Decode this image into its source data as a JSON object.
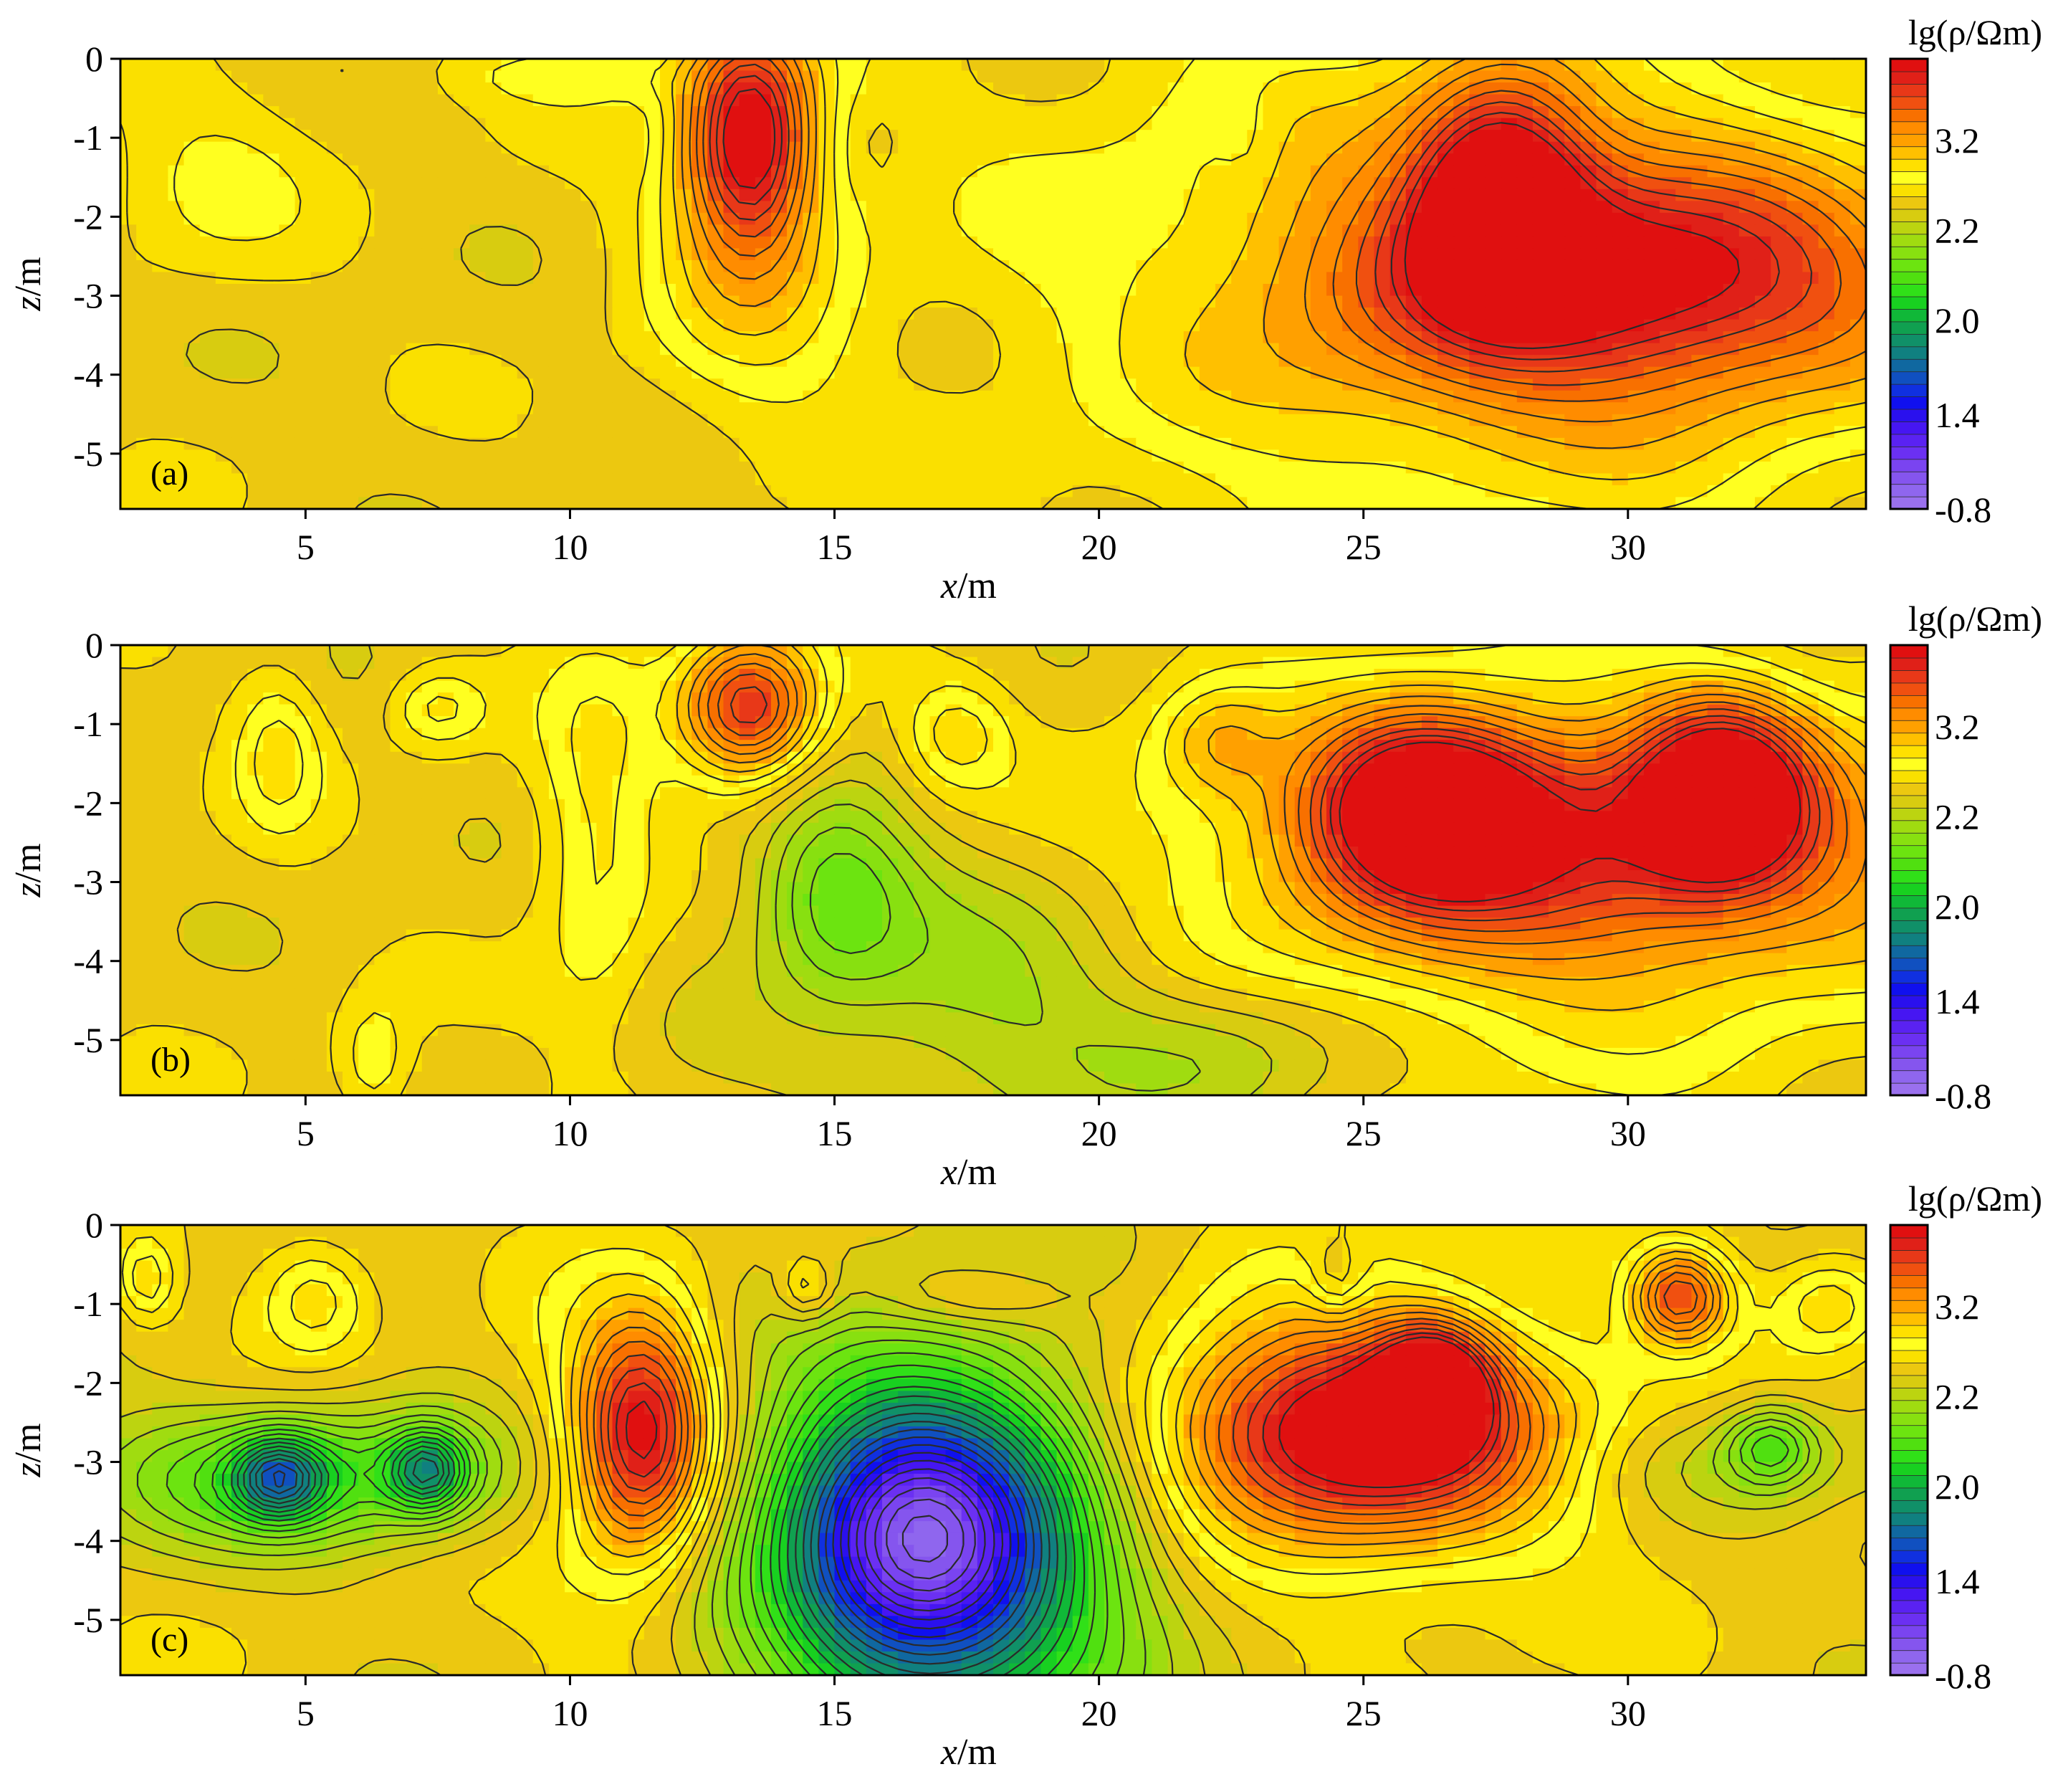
{
  "chart_data": [
    {
      "type": "heatmap",
      "panel_label": "(a)",
      "xlabel_var": "x",
      "xlabel_unit": "/m",
      "ylabel_var": "z",
      "ylabel_unit": "/m",
      "xlim": [
        1.5,
        34.5
      ],
      "ylim": [
        -5.7,
        0
      ],
      "xticks": [
        "5",
        "10",
        "15",
        "20",
        "25",
        "30"
      ],
      "xtick_values": [
        5,
        10,
        15,
        20,
        25,
        30
      ],
      "yticks": [
        "0",
        "-1",
        "-2",
        "-3",
        "-4",
        "-5"
      ],
      "ytick_values": [
        0,
        -1,
        -2,
        -3,
        -4,
        -5
      ],
      "colorbar": {
        "title": "lg(ρ/Ωm)",
        "tick_labels": [
          "3.2",
          "2.2",
          "2.0",
          "1.4",
          "-0.8"
        ],
        "tick_values": [
          3.2,
          2.2,
          2.0,
          1.4,
          -0.8
        ]
      },
      "background_value": 2.1,
      "anomalies": [
        {
          "x": 13.4,
          "z": -0.95,
          "value": 3.3,
          "rx": 1.1,
          "rz": 1.3
        },
        {
          "x": 13.4,
          "z": -2.0,
          "value": 2.55,
          "rx": 2.0,
          "rz": 2.4
        },
        {
          "x": 11.2,
          "z": -1.0,
          "value": 2.0,
          "rx": 0.8,
          "rz": 0.6
        },
        {
          "x": 15.7,
          "z": -1.1,
          "value": 2.0,
          "rx": 0.6,
          "rz": 0.7
        },
        {
          "x": 3.2,
          "z": -1.5,
          "value": 2.3,
          "rx": 2.0,
          "rz": 1.2
        },
        {
          "x": 10.0,
          "z": -0.2,
          "value": 2.3,
          "rx": 2.5,
          "rz": 0.4
        },
        {
          "x": 22.8,
          "z": -1.0,
          "value": 2.0,
          "rx": 0.6,
          "rz": 0.6
        },
        {
          "x": 27.6,
          "z": -1.6,
          "value": 3.3,
          "rx": 1.6,
          "rz": 1.4
        },
        {
          "x": 30.5,
          "z": -2.8,
          "value": 3.0,
          "rx": 5.5,
          "rz": 1.4
        },
        {
          "x": 28.5,
          "z": -3.0,
          "value": 2.55,
          "rx": 6.5,
          "rz": 2.5
        },
        {
          "x": 26.0,
          "z": -2.5,
          "value": 2.35,
          "rx": 8.5,
          "rz": 4.0
        }
      ]
    },
    {
      "type": "heatmap",
      "panel_label": "(b)",
      "xlabel_var": "x",
      "xlabel_unit": "/m",
      "ylabel_var": "z",
      "ylabel_unit": "/m",
      "xlim": [
        1.5,
        34.5
      ],
      "ylim": [
        -5.7,
        0
      ],
      "xticks": [
        "5",
        "10",
        "15",
        "20",
        "25",
        "30"
      ],
      "xtick_values": [
        5,
        10,
        15,
        20,
        25,
        30
      ],
      "yticks": [
        "0",
        "-1",
        "-2",
        "-3",
        "-4",
        "-5"
      ],
      "ytick_values": [
        0,
        -1,
        -2,
        -3,
        -4,
        -5
      ],
      "colorbar": {
        "title": "lg(ρ/Ωm)",
        "tick_labels": [
          "3.2",
          "2.2",
          "2.0",
          "1.4",
          "-0.8"
        ],
        "tick_values": [
          3.2,
          2.2,
          2.0,
          1.4,
          -0.8
        ]
      },
      "background_value": 2.1,
      "anomalies": [
        {
          "x": 4.5,
          "z": -1.3,
          "value": 2.45,
          "rx": 0.8,
          "rz": 1.0
        },
        {
          "x": 7.5,
          "z": -0.8,
          "value": 2.45,
          "rx": 0.9,
          "rz": 0.5
        },
        {
          "x": 10.5,
          "z": -2.4,
          "value": 2.45,
          "rx": 1.1,
          "rz": 2.5
        },
        {
          "x": 13.4,
          "z": -0.8,
          "value": 3.3,
          "rx": 1.3,
          "rz": 0.9
        },
        {
          "x": 17.3,
          "z": -1.1,
          "value": 2.45,
          "rx": 1.0,
          "rz": 0.7
        },
        {
          "x": 22.2,
          "z": -1.2,
          "value": 2.45,
          "rx": 1.1,
          "rz": 0.7
        },
        {
          "x": 6.3,
          "z": -5.3,
          "value": 2.4,
          "rx": 0.7,
          "rz": 0.8
        },
        {
          "x": 15.0,
          "z": -3.1,
          "value": 1.5,
          "rx": 1.5,
          "rz": 1.3
        },
        {
          "x": 18.0,
          "z": -4.4,
          "value": 1.75,
          "rx": 3.5,
          "rz": 1.8
        },
        {
          "x": 22.5,
          "z": -5.2,
          "value": 1.8,
          "rx": 2.5,
          "rz": 0.9
        },
        {
          "x": 26.2,
          "z": -2.0,
          "value": 3.4,
          "rx": 2.0,
          "rz": 1.1
        },
        {
          "x": 31.8,
          "z": -1.8,
          "value": 3.3,
          "rx": 1.5,
          "rz": 1.1
        },
        {
          "x": 29.5,
          "z": -2.4,
          "value": 3.0,
          "rx": 6.5,
          "rz": 1.6
        },
        {
          "x": 29.0,
          "z": -3.3,
          "value": 2.45,
          "rx": 7.0,
          "rz": 2.2
        }
      ]
    },
    {
      "type": "heatmap",
      "panel_label": "(c)",
      "xlabel_var": "x",
      "xlabel_unit": "/m",
      "ylabel_var": "z",
      "ylabel_unit": "/m",
      "xlim": [
        1.5,
        34.5
      ],
      "ylim": [
        -5.7,
        0
      ],
      "xticks": [
        "5",
        "10",
        "15",
        "20",
        "25",
        "30"
      ],
      "xtick_values": [
        5,
        10,
        15,
        20,
        25,
        30
      ],
      "yticks": [
        "0",
        "-1",
        "-2",
        "-3",
        "-4",
        "-5"
      ],
      "ytick_values": [
        0,
        -1,
        -2,
        -3,
        -4,
        -5
      ],
      "colorbar": {
        "title": "lg(ρ/Ωm)",
        "tick_labels": [
          "3.2",
          "2.2",
          "2.0",
          "1.4",
          "-0.8"
        ],
        "tick_values": [
          3.2,
          2.2,
          2.0,
          1.4,
          -0.8
        ]
      },
      "background_value": 2.1,
      "anomalies": [
        {
          "x": 5.2,
          "z": -0.9,
          "value": 2.5,
          "rx": 1.0,
          "rz": 0.7
        },
        {
          "x": 2.0,
          "z": -0.7,
          "value": 2.5,
          "rx": 0.5,
          "rz": 0.5
        },
        {
          "x": 5.0,
          "z": -3.2,
          "value": 1.3,
          "rx": 4.0,
          "rz": 0.9
        },
        {
          "x": 4.5,
          "z": -3.2,
          "value": 1.05,
          "rx": 0.8,
          "rz": 0.5
        },
        {
          "x": 7.3,
          "z": -3.1,
          "value": 1.1,
          "rx": 0.7,
          "rz": 0.5
        },
        {
          "x": 11.4,
          "z": -2.6,
          "value": 3.2,
          "rx": 1.2,
          "rz": 1.4
        },
        {
          "x": 11.0,
          "z": -3.0,
          "value": 2.5,
          "rx": 1.8,
          "rz": 2.2
        },
        {
          "x": 16.5,
          "z": -4.0,
          "value": 0.2,
          "rx": 2.5,
          "rz": 1.8
        },
        {
          "x": 17.5,
          "z": -4.2,
          "value": 1.1,
          "rx": 3.8,
          "rz": 2.8
        },
        {
          "x": 14.5,
          "z": -0.8,
          "value": 2.5,
          "rx": 0.5,
          "rz": 0.4
        },
        {
          "x": 17.6,
          "z": -0.9,
          "value": 2.4,
          "rx": 1.8,
          "rz": 0.4
        },
        {
          "x": 25.0,
          "z": -2.6,
          "value": 3.3,
          "rx": 3.5,
          "rz": 1.2
        },
        {
          "x": 26.3,
          "z": -2.0,
          "value": 3.4,
          "rx": 1.0,
          "rz": 0.7
        },
        {
          "x": 24.5,
          "z": -2.8,
          "value": 2.6,
          "rx": 4.5,
          "rz": 2.0
        },
        {
          "x": 31.0,
          "z": -0.9,
          "value": 3.1,
          "rx": 0.9,
          "rz": 0.6
        },
        {
          "x": 33.8,
          "z": -1.0,
          "value": 2.5,
          "rx": 1.0,
          "rz": 0.6
        },
        {
          "x": 32.0,
          "z": -3.0,
          "value": 1.85,
          "rx": 3.5,
          "rz": 0.7
        },
        {
          "x": 32.7,
          "z": -2.8,
          "value": 1.5,
          "rx": 0.8,
          "rz": 0.5
        },
        {
          "x": 24.5,
          "z": -0.7,
          "value": 1.8,
          "rx": 0.5,
          "rz": 0.5
        }
      ]
    }
  ],
  "colors": {
    "scale": [
      "#9a70ee",
      "#8f66ee",
      "#8555ee",
      "#7a44f0",
      "#6b30f2",
      "#5a22f2",
      "#4616f2",
      "#2a10ee",
      "#1010ee",
      "#1030e0",
      "#1050c0",
      "#1068a0",
      "#108080",
      "#109068",
      "#10a050",
      "#10b838",
      "#18d020",
      "#30e018",
      "#50e010",
      "#6ce410",
      "#88e010",
      "#a0dc10",
      "#bcd410",
      "#d8cc10",
      "#ecc810",
      "#fae000",
      "#ffff20",
      "#ffe000",
      "#ffc000",
      "#ffa000",
      "#ff8c00",
      "#f87000",
      "#f05010",
      "#e83818",
      "#e02018",
      "#e01010"
    ],
    "contour_line": "#2a2a2a",
    "frame": "#000000"
  }
}
